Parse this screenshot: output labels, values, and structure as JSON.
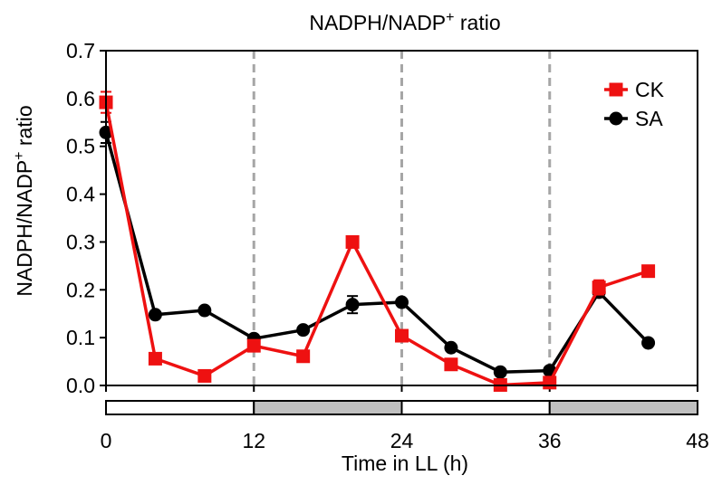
{
  "chart_data": {
    "type": "line",
    "title": "NADPH/NADP",
    "title_sup": "+",
    "title_suffix": " ratio",
    "xlabel": "Time in LL (h)",
    "ylabel": "NADPH/NADP",
    "ylabel_sup": "+",
    "ylabel_suffix": " ratio",
    "xlim": [
      0,
      48
    ],
    "ylim": [
      0,
      0.7
    ],
    "xticks": [
      0,
      12,
      24,
      36,
      48
    ],
    "xtick_labels": [
      "0",
      "12",
      "24",
      "36",
      "48"
    ],
    "yticks": [
      0,
      0.1,
      0.2,
      0.3,
      0.4,
      0.5,
      0.6,
      0.7
    ],
    "ytick_labels": [
      "0.0",
      "0.1",
      "0.2",
      "0.3",
      "0.4",
      "0.5",
      "0.6",
      "0.7"
    ],
    "dashed_vlines": [
      12,
      24,
      36
    ],
    "light_dark_bar": [
      {
        "start": 0,
        "end": 12,
        "phase": "light"
      },
      {
        "start": 12,
        "end": 24,
        "phase": "dark"
      },
      {
        "start": 24,
        "end": 36,
        "phase": "light"
      },
      {
        "start": 36,
        "end": 48,
        "phase": "dark"
      }
    ],
    "legend_position": "top-right",
    "series": [
      {
        "name": "CK",
        "color": "#ee1111",
        "marker": "square",
        "x": [
          0,
          4,
          8,
          12,
          16,
          20,
          24,
          28,
          32,
          36,
          40,
          44
        ],
        "values": [
          0.592,
          0.056,
          0.02,
          0.083,
          0.061,
          0.3,
          0.104,
          0.044,
          0.001,
          0.006,
          0.205,
          0.239
        ],
        "errors": [
          0.022,
          0.01,
          0.005,
          0.005,
          0.005,
          0.008,
          0.005,
          0.005,
          0.003,
          0.003,
          0.015,
          0.006
        ]
      },
      {
        "name": "SA",
        "color": "#000000",
        "marker": "circle",
        "x": [
          0,
          4,
          8,
          12,
          16,
          20,
          24,
          28,
          32,
          36,
          40,
          44
        ],
        "values": [
          0.529,
          0.148,
          0.157,
          0.098,
          0.116,
          0.169,
          0.174,
          0.079,
          0.028,
          0.031,
          0.195,
          0.089
        ],
        "errors": [
          0.022,
          0.003,
          0.003,
          0.003,
          0.003,
          0.018,
          0.005,
          0.003,
          0.002,
          0.002,
          0.008,
          0.003
        ]
      }
    ]
  },
  "colors": {
    "light_phase": "#ffffff",
    "dark_phase": "#c0c0c0",
    "dashed_line": "#a6a6a6"
  }
}
